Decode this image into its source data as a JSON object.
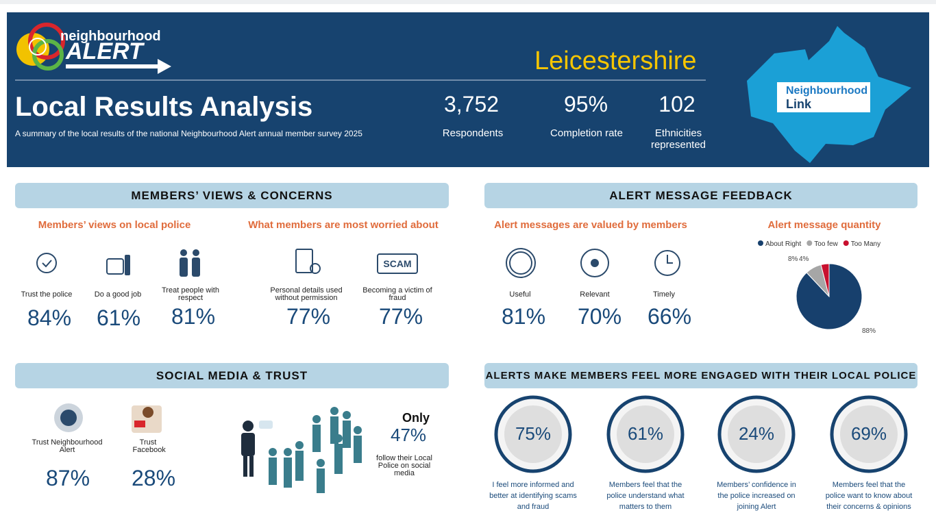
{
  "header": {
    "logo": {
      "line1": "neighbourhood",
      "line2": "ALERT"
    },
    "title": "Local Results Analysis",
    "subtitle": "A summary of the local results of the national Neighbourhood Alert annual member survey 2025",
    "region": "Leicestershire",
    "stats": [
      {
        "value": "3,752",
        "label": "Respondents"
      },
      {
        "value": "95%",
        "label": "Completion rate"
      },
      {
        "value": "102",
        "label": "Ethnicities represented"
      }
    ],
    "map_logo": {
      "line1": "Neighbourhood",
      "line2": "Link"
    }
  },
  "views": {
    "heading": "MEMBERS’ VIEWS & CONCERNS",
    "police": {
      "title": "Members’ views on local police",
      "items": [
        {
          "label": "Trust the police",
          "value": "84%"
        },
        {
          "label": "Do a good job",
          "value": "61%"
        },
        {
          "label": "Treat people with respect",
          "value": "81%"
        }
      ]
    },
    "worries": {
      "title": "What members are most worried about",
      "items": [
        {
          "label": "Personal details used without permission",
          "value": "77%"
        },
        {
          "label": "Becoming a victim of fraud",
          "value": "77%"
        }
      ]
    }
  },
  "feedback": {
    "heading": "ALERT MESSAGE FEEDBACK",
    "valued": {
      "title": "Alert messages are valued by members",
      "items": [
        {
          "label": "Useful",
          "value": "81%"
        },
        {
          "label": "Relevant",
          "value": "70%"
        },
        {
          "label": "Timely",
          "value": "66%"
        }
      ]
    },
    "quantity": {
      "type": "pie",
      "title": "Alert message quantity",
      "categories": [
        "About Right",
        "Too few",
        "Too Many"
      ],
      "values": [
        88,
        8,
        4
      ],
      "value_labels": [
        "88%",
        "8%",
        "4%"
      ],
      "colors": [
        "#17406d",
        "#a6a6a6",
        "#c8102e"
      ]
    }
  },
  "social": {
    "heading": "SOCIAL MEDIA & TRUST",
    "items": [
      {
        "label": "Trust Neighbourhood Alert",
        "value": "87%"
      },
      {
        "label": "Trust Facebook",
        "value": "28%"
      }
    ],
    "follow": {
      "lead": "Only",
      "value": "47%",
      "text": "follow their Local Police on social media"
    }
  },
  "engaged": {
    "heading": "ALERTS MAKE MEMBERS FEEL MORE ENGAGED WITH THEIR LOCAL POLICE",
    "items": [
      {
        "value": "75%",
        "text": "I feel more informed and better at identifying scams and fraud"
      },
      {
        "value": "61%",
        "text": "Members feel that the police understand what matters to them"
      },
      {
        "value": "24%",
        "text": "Members’ confidence in the police increased on joining Alert"
      },
      {
        "value": "69%",
        "text": "Members feel that the police want to know about their concerns & opinions"
      }
    ]
  }
}
